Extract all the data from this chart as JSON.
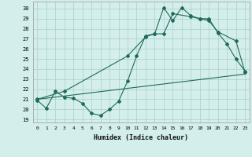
{
  "xlabel": "Humidex (Indice chaleur)",
  "bg_color": "#d4eeec",
  "grid_color": "#aed4d0",
  "line_color": "#1e6b5a",
  "xlim": [
    -0.5,
    23.5
  ],
  "ylim": [
    18.7,
    30.7
  ],
  "xticks": [
    0,
    1,
    2,
    3,
    4,
    5,
    6,
    7,
    8,
    9,
    10,
    11,
    12,
    13,
    14,
    15,
    16,
    17,
    18,
    19,
    20,
    21,
    22,
    23
  ],
  "yticks": [
    19,
    20,
    21,
    22,
    23,
    24,
    25,
    26,
    27,
    28,
    29,
    30
  ],
  "series1_x": [
    0,
    1,
    2,
    3,
    4,
    5,
    6,
    7,
    8,
    9,
    10,
    11,
    12,
    13,
    14,
    15,
    16,
    17,
    18,
    19,
    20,
    21,
    22,
    23
  ],
  "series1_y": [
    20.9,
    20.1,
    21.8,
    21.2,
    21.1,
    20.6,
    19.6,
    19.4,
    20.0,
    20.8,
    22.8,
    25.3,
    27.3,
    27.5,
    30.1,
    28.8,
    30.1,
    29.3,
    29.0,
    29.0,
    27.6,
    26.5,
    25.0,
    23.8
  ],
  "series2_x": [
    0,
    3,
    10,
    12,
    13,
    14,
    15,
    17,
    18,
    19,
    20,
    22,
    23
  ],
  "series2_y": [
    21.0,
    21.8,
    25.3,
    27.2,
    27.5,
    27.5,
    29.5,
    29.2,
    29.0,
    28.8,
    27.7,
    26.8,
    23.7
  ],
  "series3_x": [
    0,
    23
  ],
  "series3_y": [
    21.0,
    23.5
  ]
}
